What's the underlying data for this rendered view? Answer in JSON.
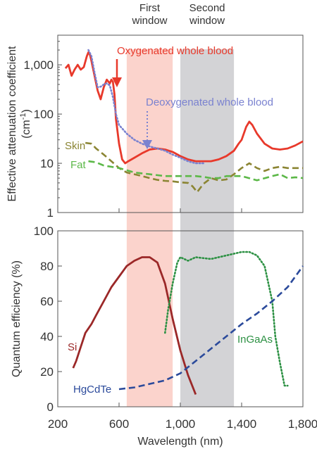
{
  "bands": [
    {
      "label": [
        "First",
        "window"
      ],
      "x_range": [
        650,
        950
      ],
      "color": "#fbd3cc"
    },
    {
      "label": [
        "Second",
        "window"
      ],
      "x_range": [
        1000,
        1350
      ],
      "color": "#d3d3d6"
    }
  ],
  "x_axis": {
    "label": "Wavelength (nm)",
    "range": [
      200,
      1800
    ],
    "ticks": [
      200,
      600,
      1000,
      1400,
      1800
    ],
    "tick_labels": [
      "200",
      "600",
      "1,000",
      "1,400",
      "1,800"
    ]
  },
  "chart_data": [
    {
      "type": "line",
      "ylabel": [
        "Effective attenuation coefficient",
        "(cm",
        "-1",
        ")"
      ],
      "yscale": "log",
      "ylim": [
        1,
        4000
      ],
      "y_ticks": [
        1,
        10,
        100,
        1000
      ],
      "y_tick_labels": [
        "1",
        "10",
        "100",
        "1,000"
      ],
      "series": [
        {
          "name": "Oxygenated whole blood",
          "color": "#e8392b",
          "style": "solid",
          "x": [
            250,
            270,
            290,
            310,
            330,
            350,
            370,
            390,
            400,
            410,
            420,
            440,
            460,
            480,
            500,
            520,
            540,
            550,
            560,
            570,
            580,
            600,
            620,
            640,
            660,
            700,
            750,
            800,
            850,
            900,
            950,
            1000,
            1050,
            1100,
            1150,
            1200,
            1250,
            1300,
            1350,
            1380,
            1400,
            1430,
            1450,
            1470,
            1500,
            1550,
            1600,
            1650,
            1700,
            1750,
            1800
          ],
          "y": [
            850,
            1000,
            600,
            800,
            1000,
            800,
            900,
            1500,
            1800,
            1600,
            1200,
            600,
            300,
            200,
            350,
            500,
            420,
            500,
            450,
            250,
            80,
            25,
            12,
            10,
            11,
            13,
            16,
            19,
            20,
            19,
            17,
            14,
            12,
            11,
            11,
            11,
            12,
            14,
            18,
            25,
            30,
            55,
            70,
            60,
            40,
            25,
            20,
            19,
            20,
            23,
            28
          ]
        },
        {
          "name": "Deoxygenated whole blood",
          "color": "#7a82d0",
          "style": "dotted",
          "x": [
            400,
            420,
            440,
            460,
            480,
            500,
            520,
            540,
            560,
            580,
            600,
            650,
            700,
            750,
            800,
            850,
            900,
            950,
            1000,
            1050,
            1100,
            1150
          ],
          "y": [
            2000,
            1500,
            700,
            350,
            360,
            400,
            420,
            380,
            220,
            100,
            60,
            40,
            30,
            25,
            22,
            20,
            18,
            15,
            13,
            11,
            10,
            10
          ]
        },
        {
          "name": "Skin",
          "color": "#8b8533",
          "style": "dashed",
          "x": [
            380,
            420,
            450,
            500,
            550,
            600,
            650,
            700,
            750,
            800,
            850,
            900,
            950,
            1000,
            1050,
            1080,
            1110,
            1150,
            1200,
            1250,
            1300,
            1350,
            1400,
            1450,
            1500,
            1550,
            1600,
            1650,
            1700,
            1750,
            1800
          ],
          "y": [
            26,
            25,
            20,
            15,
            11,
            8,
            6.5,
            6,
            5.5,
            5,
            4.6,
            4.4,
            4.3,
            4.1,
            4,
            3.4,
            2.6,
            3.8,
            5,
            4.5,
            4.7,
            6,
            8,
            10,
            8,
            7,
            8,
            8.5,
            8,
            8,
            8
          ]
        },
        {
          "name": "Fat",
          "color": "#5cb848",
          "style": "dashed",
          "x": [
            400,
            450,
            500,
            600,
            700,
            800,
            900,
            1000,
            1100,
            1150,
            1200,
            1250,
            1300,
            1400,
            1500,
            1600,
            1650,
            1700,
            1750,
            1800
          ],
          "y": [
            11,
            10.5,
            9,
            8,
            6.5,
            6,
            5.5,
            5.5,
            5.5,
            5.3,
            5,
            5,
            5.5,
            5.5,
            4.5,
            5.5,
            6,
            5,
            5.2,
            5
          ]
        }
      ]
    },
    {
      "type": "line",
      "ylabel": [
        "Quantum efficiency (%)"
      ],
      "yscale": "linear",
      "ylim": [
        0,
        100
      ],
      "y_ticks": [
        0,
        20,
        40,
        60,
        80,
        100
      ],
      "y_tick_labels": [
        "0",
        "20",
        "40",
        "60",
        "80",
        "100"
      ],
      "series": [
        {
          "name": "Si",
          "color": "#9b2828",
          "style": "solid",
          "x": [
            300,
            320,
            350,
            380,
            420,
            450,
            500,
            550,
            600,
            650,
            700,
            750,
            800,
            850,
            900,
            950,
            1000,
            1050,
            1100
          ],
          "y": [
            22,
            26,
            34,
            42,
            47,
            52,
            60,
            68,
            74,
            80,
            83,
            85,
            85,
            82,
            70,
            50,
            32,
            18,
            7
          ]
        },
        {
          "name": "InGaAs",
          "color": "#2d9144",
          "style": "dotted",
          "x": [
            900,
            920,
            950,
            980,
            1000,
            1050,
            1100,
            1200,
            1300,
            1400,
            1450,
            1500,
            1550,
            1600,
            1620,
            1650,
            1680,
            1700
          ],
          "y": [
            42,
            55,
            70,
            82,
            85,
            83,
            85,
            84,
            86,
            88,
            88,
            86,
            80,
            60,
            40,
            25,
            12,
            12
          ]
        },
        {
          "name": "HgCdTe",
          "color": "#2b4a9b",
          "style": "dashed",
          "x": [
            600,
            700,
            800,
            900,
            1000,
            1100,
            1200,
            1300,
            1400,
            1500,
            1600,
            1700,
            1800
          ],
          "y": [
            10,
            11,
            13,
            15,
            19,
            26,
            33,
            40,
            47,
            53,
            60,
            68,
            80
          ]
        }
      ]
    }
  ]
}
